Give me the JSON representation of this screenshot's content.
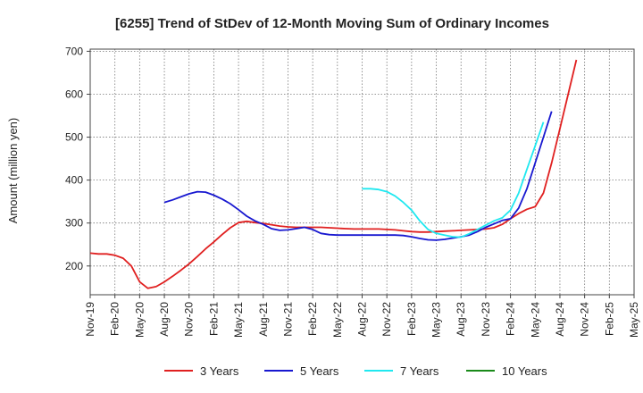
{
  "chart_data": {
    "type": "line",
    "title": "[6255]  Trend of StDev of 12-Month Moving Sum of Ordinary Incomes",
    "ylabel": "Amount (million yen)",
    "xlabel": "",
    "ylim": [
      133,
      705
    ],
    "yticks": [
      200,
      300,
      400,
      500,
      600,
      700
    ],
    "x_ticks": [
      "Nov-19",
      "Feb-20",
      "May-20",
      "Aug-20",
      "Nov-20",
      "Feb-21",
      "May-21",
      "Aug-21",
      "Nov-21",
      "Feb-22",
      "May-22",
      "Aug-22",
      "Nov-22",
      "Feb-23",
      "May-23",
      "Aug-23",
      "Nov-23",
      "Feb-24",
      "May-24",
      "Aug-24",
      "Nov-24",
      "Feb-25",
      "May-25"
    ],
    "x_unit": "months since Nov-19",
    "grid": true,
    "legend_position": "bottom",
    "series": [
      {
        "name": "3 Years",
        "color": "#e02020",
        "points": [
          [
            0,
            230
          ],
          [
            1,
            228
          ],
          [
            2,
            228
          ],
          [
            3,
            225
          ],
          [
            4,
            218
          ],
          [
            5,
            200
          ],
          [
            6,
            163
          ],
          [
            7,
            148
          ],
          [
            8,
            152
          ],
          [
            9,
            163
          ],
          [
            10,
            176
          ],
          [
            11,
            190
          ],
          [
            12,
            205
          ],
          [
            13,
            222
          ],
          [
            14,
            240
          ],
          [
            15,
            256
          ],
          [
            16,
            273
          ],
          [
            17,
            289
          ],
          [
            18,
            301
          ],
          [
            19,
            304
          ],
          [
            20,
            301
          ],
          [
            21,
            299
          ],
          [
            22,
            296
          ],
          [
            23,
            293
          ],
          [
            24,
            291
          ],
          [
            25,
            290
          ],
          [
            26,
            290
          ],
          [
            27,
            290
          ],
          [
            28,
            290
          ],
          [
            29,
            289
          ],
          [
            30,
            288
          ],
          [
            31,
            287
          ],
          [
            32,
            286
          ],
          [
            33,
            286
          ],
          [
            34,
            286
          ],
          [
            35,
            286
          ],
          [
            36,
            285
          ],
          [
            37,
            284
          ],
          [
            38,
            282
          ],
          [
            39,
            280
          ],
          [
            40,
            279
          ],
          [
            41,
            279
          ],
          [
            42,
            280
          ],
          [
            43,
            281
          ],
          [
            44,
            282
          ],
          [
            45,
            283
          ],
          [
            46,
            284
          ],
          [
            47,
            285
          ],
          [
            48,
            286
          ],
          [
            49,
            289
          ],
          [
            50,
            297
          ],
          [
            51,
            310
          ],
          [
            52,
            322
          ],
          [
            53,
            332
          ],
          [
            54,
            338
          ],
          [
            55,
            370
          ],
          [
            56,
            440
          ],
          [
            57,
            520
          ],
          [
            58,
            600
          ],
          [
            59,
            680
          ]
        ]
      },
      {
        "name": "5 Years",
        "color": "#1818d0",
        "points": [
          [
            9,
            348
          ],
          [
            10,
            354
          ],
          [
            11,
            361
          ],
          [
            12,
            368
          ],
          [
            13,
            373
          ],
          [
            14,
            372
          ],
          [
            15,
            365
          ],
          [
            16,
            356
          ],
          [
            17,
            345
          ],
          [
            18,
            331
          ],
          [
            19,
            316
          ],
          [
            20,
            305
          ],
          [
            21,
            297
          ],
          [
            22,
            287
          ],
          [
            23,
            283
          ],
          [
            24,
            284
          ],
          [
            25,
            287
          ],
          [
            26,
            290
          ],
          [
            27,
            285
          ],
          [
            28,
            276
          ],
          [
            29,
            273
          ],
          [
            30,
            272
          ],
          [
            31,
            272
          ],
          [
            32,
            272
          ],
          [
            33,
            272
          ],
          [
            34,
            272
          ],
          [
            35,
            272
          ],
          [
            36,
            272
          ],
          [
            37,
            272
          ],
          [
            38,
            271
          ],
          [
            39,
            268
          ],
          [
            40,
            264
          ],
          [
            41,
            261
          ],
          [
            42,
            260
          ],
          [
            43,
            262
          ],
          [
            44,
            265
          ],
          [
            45,
            268
          ],
          [
            46,
            272
          ],
          [
            47,
            280
          ],
          [
            48,
            290
          ],
          [
            49,
            298
          ],
          [
            50,
            306
          ],
          [
            51,
            310
          ],
          [
            52,
            335
          ],
          [
            53,
            380
          ],
          [
            54,
            440
          ],
          [
            55,
            500
          ],
          [
            56,
            560
          ]
        ]
      },
      {
        "name": "7 Years",
        "color": "#20e8f0",
        "points": [
          [
            33,
            380
          ],
          [
            34,
            380
          ],
          [
            35,
            378
          ],
          [
            36,
            373
          ],
          [
            37,
            363
          ],
          [
            38,
            348
          ],
          [
            39,
            330
          ],
          [
            40,
            305
          ],
          [
            41,
            285
          ],
          [
            42,
            276
          ],
          [
            43,
            272
          ],
          [
            44,
            268
          ],
          [
            45,
            267
          ],
          [
            46,
            275
          ],
          [
            47,
            285
          ],
          [
            48,
            295
          ],
          [
            49,
            305
          ],
          [
            50,
            312
          ],
          [
            51,
            330
          ],
          [
            52,
            370
          ],
          [
            53,
            425
          ],
          [
            54,
            480
          ],
          [
            55,
            535
          ]
        ]
      },
      {
        "name": "10 Years",
        "color": "#1a8a1a",
        "points": []
      }
    ]
  }
}
